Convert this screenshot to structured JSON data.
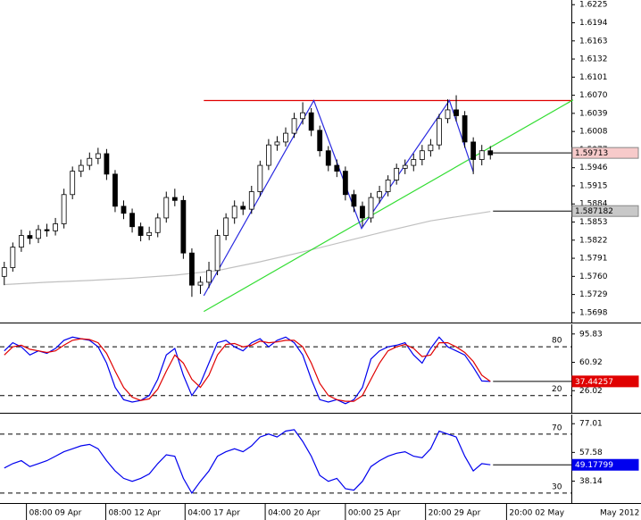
{
  "chart_data": [
    {
      "type": "candlestick",
      "xlim": [
        -0.5,
        66.5
      ],
      "ylim": [
        1.5681,
        1.6233
      ],
      "yticks": [
        1.6225,
        1.6194,
        1.6163,
        1.6132,
        1.6101,
        {
          "value": 1.607,
          "label": "1.6070"
        },
        1.6039,
        1.6008,
        1.5977,
        1.5946,
        1.5915,
        1.5884,
        1.5853,
        1.5822,
        1.5791,
        {
          "value": 1.576,
          "label": "1.5760"
        },
        1.5729,
        1.5698
      ],
      "up_color": "#ffffff",
      "down_color": "#000000",
      "open": [
        1.576,
        1.5775,
        1.581,
        1.583,
        1.5825,
        1.584,
        1.5838,
        1.585,
        1.59,
        1.594,
        1.595,
        1.5962,
        1.597,
        1.5935,
        1.588,
        1.5868,
        1.5845,
        1.583,
        1.5835,
        1.586,
        1.5895,
        1.589,
        1.58,
        1.5745,
        1.575,
        1.577,
        1.583,
        1.586,
        1.588,
        1.5875,
        1.5905,
        1.595,
        1.5985,
        1.599,
        1.6005,
        1.603,
        1.604,
        1.601,
        1.5975,
        1.595,
        1.594,
        1.59,
        1.588,
        1.586,
        1.5895,
        1.5905,
        1.5925,
        1.5945,
        1.595,
        1.596,
        1.5975,
        1.5985,
        1.603,
        1.6045,
        1.6035,
        1.599,
        1.596,
        1.5975
      ],
      "high": [
        1.5785,
        1.5818,
        1.584,
        1.5838,
        1.5848,
        1.585,
        1.586,
        1.591,
        1.5948,
        1.596,
        1.5972,
        1.598,
        1.5978,
        1.5942,
        1.589,
        1.5876,
        1.5852,
        1.5845,
        1.5868,
        1.5905,
        1.591,
        1.5898,
        1.5808,
        1.576,
        1.5785,
        1.584,
        1.5868,
        1.589,
        1.5888,
        1.5915,
        1.5958,
        1.5995,
        1.6,
        1.6015,
        1.604,
        1.6058,
        1.6048,
        1.6018,
        1.5983,
        1.596,
        1.5948,
        1.5908,
        1.5888,
        1.5903,
        1.5915,
        1.5933,
        1.5953,
        1.596,
        1.597,
        1.5985,
        1.5995,
        1.6038,
        1.6063,
        1.607,
        1.6043,
        1.5998,
        1.5985,
        1.5983
      ],
      "low": [
        1.5745,
        1.5768,
        1.5802,
        1.5815,
        1.5817,
        1.5828,
        1.583,
        1.5842,
        1.5892,
        1.593,
        1.5942,
        1.5952,
        1.5925,
        1.587,
        1.5858,
        1.5835,
        1.582,
        1.5822,
        1.5827,
        1.5852,
        1.588,
        1.579,
        1.5725,
        1.573,
        1.574,
        1.5762,
        1.5822,
        1.585,
        1.5865,
        1.5867,
        1.5897,
        1.5942,
        1.5975,
        1.5982,
        1.5997,
        1.602,
        1.6,
        1.5965,
        1.594,
        1.593,
        1.589,
        1.587,
        1.5845,
        1.5852,
        1.5885,
        1.5897,
        1.5917,
        1.5935,
        1.594,
        1.595,
        1.5965,
        1.5977,
        1.6022,
        1.6025,
        1.598,
        1.5935,
        1.595,
        1.596
      ],
      "close": [
        1.5775,
        1.581,
        1.583,
        1.5825,
        1.584,
        1.5838,
        1.585,
        1.59,
        1.594,
        1.595,
        1.5962,
        1.597,
        1.5935,
        1.588,
        1.5868,
        1.5845,
        1.583,
        1.5835,
        1.586,
        1.5895,
        1.589,
        1.58,
        1.5745,
        1.575,
        1.577,
        1.583,
        1.586,
        1.588,
        1.5875,
        1.5905,
        1.595,
        1.5985,
        1.599,
        1.6005,
        1.603,
        1.604,
        1.601,
        1.5975,
        1.595,
        1.594,
        1.59,
        1.588,
        1.586,
        1.5895,
        1.5905,
        1.5925,
        1.5945,
        1.595,
        1.596,
        1.5975,
        1.5985,
        1.603,
        1.6045,
        1.6035,
        1.599,
        1.596,
        1.5975,
        1.5968
      ],
      "lines": [
        {
          "color": "#c0c0c0",
          "x": [
            0,
            5,
            10,
            15,
            20,
            25,
            30,
            35,
            40,
            45,
            50,
            57
          ],
          "y": [
            1.5746,
            1.575,
            1.5753,
            1.5757,
            1.5762,
            1.577,
            1.5785,
            1.5802,
            1.582,
            1.5838,
            1.5855,
            1.5871
          ]
        },
        {
          "color": "#e00000",
          "x": [
            23.4,
            66.5
          ],
          "y": [
            1.6061,
            1.6061
          ]
        },
        {
          "color": "#33dd33",
          "x": [
            23.4,
            66.7
          ],
          "y": [
            1.57,
            1.6062
          ]
        },
        {
          "color": "#2a2ae0",
          "x": [
            23.4,
            36.3,
            41.9,
            52.2,
            55.0
          ],
          "y": [
            1.5727,
            1.6061,
            1.5842,
            1.6061,
            1.5939
          ]
        }
      ],
      "markers": [
        {
          "value": 1.59713,
          "color": "#f7caca"
        },
        {
          "value": 1.587182,
          "color": "#c8c8c8"
        }
      ]
    },
    {
      "type": "line",
      "xlim": [
        -0.5,
        66.5
      ],
      "ylim": [
        -1.2,
        107.7
      ],
      "yticks": [
        95.83,
        60.92,
        26.02
      ],
      "levels": [
        80,
        20
      ],
      "series": [
        {
          "color": "#0000ee",
          "values": [
            75,
            85,
            80,
            70,
            75,
            72,
            78,
            88,
            92,
            90,
            88,
            80,
            60,
            30,
            15,
            12,
            14,
            20,
            40,
            70,
            78,
            45,
            20,
            35,
            60,
            85,
            88,
            80,
            75,
            85,
            90,
            80,
            88,
            92,
            85,
            70,
            40,
            15,
            12,
            15,
            10,
            15,
            30,
            65,
            75,
            80,
            82,
            85,
            70,
            60,
            78,
            92,
            80,
            75,
            70,
            55,
            38,
            37.4
          ]
        },
        {
          "color": "#e00000",
          "values": [
            70,
            80,
            82,
            77,
            75,
            73,
            75,
            82,
            88,
            90,
            89,
            85,
            72,
            50,
            30,
            18,
            14,
            16,
            28,
            50,
            70,
            60,
            40,
            30,
            45,
            70,
            83,
            84,
            80,
            82,
            87,
            85,
            86,
            88,
            88,
            80,
            60,
            35,
            20,
            15,
            13,
            13,
            20,
            40,
            60,
            75,
            80,
            83,
            78,
            68,
            70,
            85,
            85,
            80,
            73,
            62,
            45,
            37.44257
          ]
        }
      ],
      "markers": [
        {
          "value": 37.44257,
          "color": "#e00000"
        }
      ]
    },
    {
      "type": "line",
      "xlim": [
        -0.5,
        66.5
      ],
      "ylim": [
        23.3,
        83.2
      ],
      "yticks": [
        77.01,
        57.58,
        38.14
      ],
      "levels": [
        70,
        30
      ],
      "series": [
        {
          "color": "#0000ee",
          "values": [
            47,
            50,
            52,
            48,
            50,
            52,
            55,
            58,
            60,
            62,
            63,
            60,
            52,
            45,
            40,
            38,
            40,
            43,
            50,
            56,
            55,
            40,
            30,
            38,
            45,
            55,
            58,
            60,
            58,
            62,
            68,
            70,
            68,
            72,
            73,
            65,
            55,
            42,
            38,
            40,
            33,
            32,
            38,
            48,
            52,
            55,
            57,
            58,
            55,
            54,
            60,
            72,
            70,
            68,
            55,
            45,
            50,
            49.17799
          ]
        }
      ],
      "markers": [
        {
          "value": 49.17799,
          "color": "#0000ee"
        }
      ],
      "xticks": [
        {
          "value": 2.6,
          "label": "08:00 09 Apr"
        },
        {
          "value": 11.9,
          "label": "08:00 12 Apr"
        },
        {
          "value": 21.2,
          "label": "04:00 17 Apr"
        },
        {
          "value": 30.6,
          "label": "04:00 20 Apr"
        },
        {
          "value": 40.0,
          "label": "00:00 25 Apr"
        },
        {
          "value": 49.4,
          "label": "20:00 29 Apr"
        },
        {
          "value": 58.9,
          "label": "20:00 02 May"
        }
      ],
      "corner_label": "May 2012"
    }
  ]
}
